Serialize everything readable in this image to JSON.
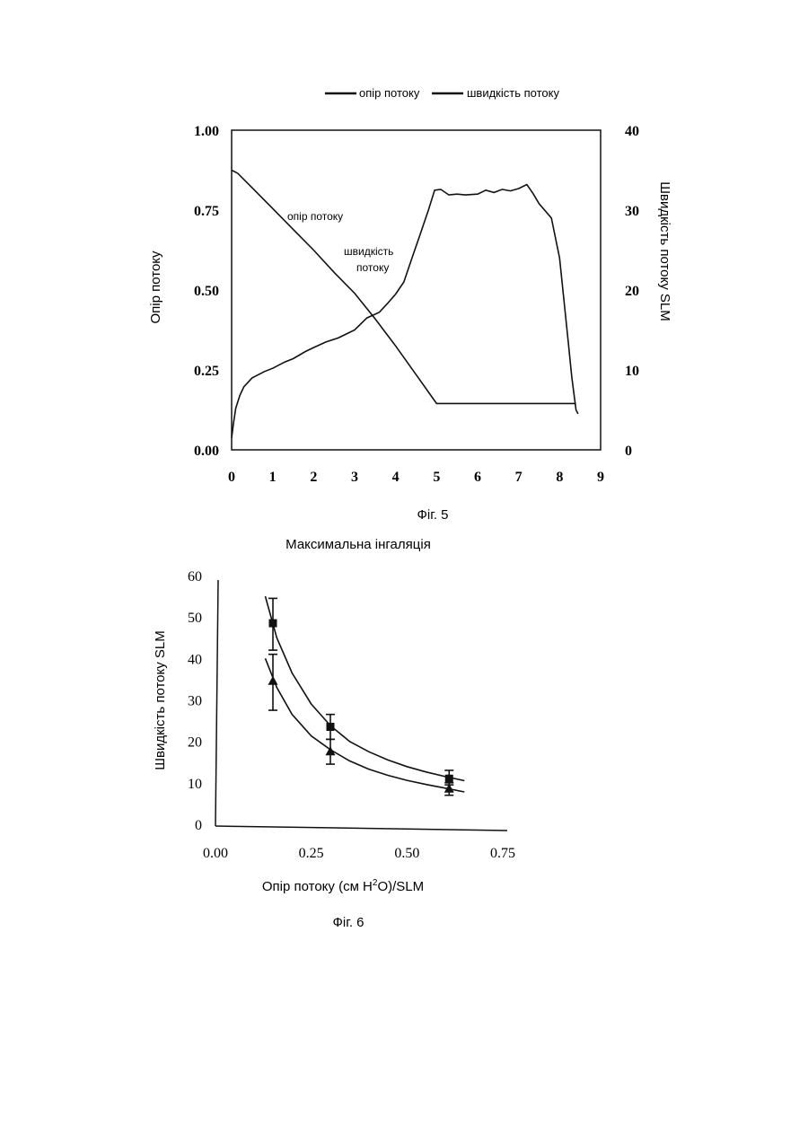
{
  "colors": {
    "ink": "#111111",
    "paper": "#ffffff"
  },
  "chart_data": [
    {
      "type": "line",
      "figure_label": "Фіг. 5",
      "legend": [
        "опір потоку",
        "швидкість потоку"
      ],
      "legend_position": "top",
      "ylabel": "Опір потоку",
      "y2label": "Швидкість потоку  SLM",
      "xlim": [
        0,
        9
      ],
      "ylim": [
        0,
        1.0
      ],
      "y2lim": [
        0,
        40
      ],
      "x_ticks": [
        "0",
        "1",
        "2",
        "3",
        "4",
        "5",
        "6",
        "7",
        "8",
        "9"
      ],
      "y_ticks": [
        "0.00",
        "0.25",
        "0.50",
        "0.75",
        "1.00"
      ],
      "y2_ticks": [
        "0",
        "10",
        "20",
        "30",
        "40"
      ],
      "grid": false,
      "annotations": [
        "опір потоку",
        "швидкість",
        "потоку"
      ],
      "series": [
        {
          "name": "опір потоку",
          "axis": "left",
          "x": [
            0,
            0.15,
            0.5,
            1.0,
            1.5,
            2.0,
            2.5,
            3.0,
            3.5,
            4.0,
            4.5,
            5.0,
            5.5,
            6.0,
            6.5,
            7.0,
            7.5,
            8.0,
            8.4
          ],
          "y": [
            0.875,
            0.865,
            0.82,
            0.755,
            0.69,
            0.625,
            0.555,
            0.49,
            0.41,
            0.325,
            0.235,
            0.145,
            0.145,
            0.145,
            0.145,
            0.145,
            0.145,
            0.145,
            0.145
          ]
        },
        {
          "name": "швидкість потоку",
          "axis": "right",
          "x": [
            0,
            0.05,
            0.1,
            0.2,
            0.3,
            0.5,
            0.8,
            1.0,
            1.3,
            1.5,
            1.8,
            2.0,
            2.3,
            2.6,
            3.0,
            3.3,
            3.6,
            3.8,
            4.0,
            4.2,
            4.4,
            4.6,
            4.8,
            4.95,
            5.1,
            5.3,
            5.5,
            5.7,
            6.0,
            6.2,
            6.4,
            6.6,
            6.8,
            7.0,
            7.2,
            7.35,
            7.5,
            7.8,
            8.0,
            8.1,
            8.2,
            8.3,
            8.4,
            8.45
          ],
          "y": [
            1.5,
            3.5,
            5.2,
            6.8,
            7.9,
            9.0,
            9.8,
            10.2,
            11.0,
            11.4,
            12.3,
            12.8,
            13.5,
            14.0,
            15.0,
            16.5,
            17.2,
            18.3,
            19.5,
            21.0,
            24.0,
            27.0,
            30.0,
            32.5,
            32.6,
            31.9,
            32.0,
            31.9,
            32.0,
            32.5,
            32.2,
            32.6,
            32.4,
            32.7,
            33.2,
            32.1,
            30.8,
            29.0,
            24.0,
            19.0,
            14.0,
            9.0,
            5.0,
            4.5
          ]
        }
      ]
    },
    {
      "type": "scatter",
      "title": "Максимальна інгаляція",
      "figure_label": "Фіг. 6",
      "xlabel_prefix": "Опір потоку  (см Н",
      "xlabel_sup": "2",
      "xlabel_suffix": "О)/SLM",
      "ylabel": "Швидкість потоку  SLM",
      "xlim": [
        0,
        0.75
      ],
      "ylim": [
        0,
        60
      ],
      "x_ticks": [
        "0.00",
        "0.25",
        "0.50",
        "0.75"
      ],
      "y_ticks": [
        "0",
        "10",
        "20",
        "30",
        "40",
        "50",
        "60"
      ],
      "grid": false,
      "series": [
        {
          "marker": "square",
          "points": [
            {
              "x": 0.15,
              "y": 48.5,
              "err_low": 42,
              "err_high": 54.5
            },
            {
              "x": 0.3,
              "y": 23.5,
              "err_low": 20.5,
              "err_high": 26.5
            },
            {
              "x": 0.61,
              "y": 11.0,
              "err_low": 9.5,
              "err_high": 13
            }
          ],
          "fit": {
            "x": [
              0.13,
              0.16,
              0.2,
              0.25,
              0.3,
              0.35,
              0.4,
              0.45,
              0.5,
              0.55,
              0.6,
              0.65
            ],
            "y": [
              55,
              45,
              36.5,
              29,
              23.8,
              20,
              17.5,
              15.5,
              13.9,
              12.6,
              11.5,
              10.5
            ]
          }
        },
        {
          "marker": "triangle",
          "points": [
            {
              "x": 0.15,
              "y": 34.5,
              "err_low": 27.5,
              "err_high": 41
            },
            {
              "x": 0.3,
              "y": 17.5,
              "err_low": 14.5,
              "err_high": 20.5
            },
            {
              "x": 0.61,
              "y": 8.5,
              "err_low": 7,
              "err_high": 10
            }
          ],
          "fit": {
            "x": [
              0.13,
              0.16,
              0.2,
              0.25,
              0.3,
              0.35,
              0.4,
              0.45,
              0.5,
              0.55,
              0.6,
              0.65
            ],
            "y": [
              40,
              33,
              26.5,
              21.3,
              18,
              15.3,
              13.3,
              11.8,
              10.6,
              9.6,
              8.7,
              7.8
            ]
          }
        }
      ]
    }
  ]
}
